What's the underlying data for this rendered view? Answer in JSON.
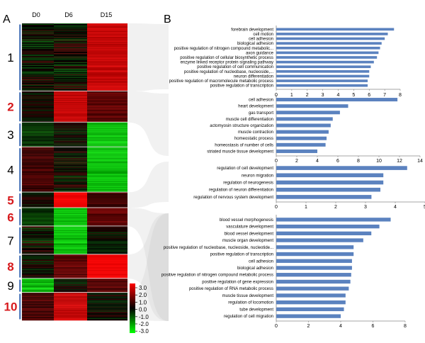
{
  "panel_a": {
    "letter": "A",
    "columns": [
      "D0",
      "D6",
      "D15"
    ],
    "clusters": [
      {
        "label": "1",
        "label_color": "#000000",
        "rows": 96,
        "pattern": [
          "mixed",
          "mixed",
          "red"
        ]
      },
      {
        "label": "2",
        "label_color": "#d7191c",
        "rows": 44,
        "pattern": [
          "dark",
          "red",
          "darkred"
        ]
      },
      {
        "label": "3",
        "label_color": "#000000",
        "rows": 35,
        "pattern": [
          "greendark",
          "dark",
          "green"
        ]
      },
      {
        "label": "4",
        "label_color": "#000000",
        "rows": 64,
        "pattern": [
          "reddark",
          "mixed",
          "green"
        ]
      },
      {
        "label": "5",
        "label_color": "#d7191c",
        "rows": 22,
        "pattern": [
          "dark",
          "brightred",
          "reddark"
        ]
      },
      {
        "label": "6",
        "label_color": "#d7191c",
        "rows": 26,
        "pattern": [
          "greendark",
          "green",
          "darkred"
        ]
      },
      {
        "label": "7",
        "label_color": "#000000",
        "rows": 40,
        "pattern": [
          "mixed",
          "green",
          "dark"
        ]
      },
      {
        "label": "8",
        "label_color": "#d7191c",
        "rows": 34,
        "pattern": [
          "dark",
          "darkred",
          "brightred"
        ]
      },
      {
        "label": "9",
        "label_color": "#000000",
        "rows": 20,
        "pattern": [
          "green",
          "dark",
          "darkred"
        ]
      },
      {
        "label": "10",
        "label_color": "#d7191c",
        "rows": 39,
        "pattern": [
          "reddark",
          "red",
          "dark"
        ]
      }
    ],
    "color_key": {
      "ticks": [
        "3.0",
        "2.0",
        "1.0",
        "0.0",
        "-1.0",
        "-2.0",
        "-3.0"
      ],
      "high_color": "#ff0000",
      "mid_color": "#000000",
      "low_color": "#00ff00"
    }
  },
  "panel_b": {
    "letter": "B",
    "bar_color": "#5b82bf"
  },
  "chart_data": [
    {
      "type": "bar",
      "orientation": "horizontal",
      "cluster": "1",
      "categories": [
        "forebrain development",
        "cell motion",
        "cell adhesion",
        "biological adhesion",
        "positive regulation of nitrogen compound metabolic...",
        "axon guidance",
        "positive regulation of cellular biosynthetic process",
        "enzyme linked receptor protein signaling pathway",
        "positive regulation of cell communication",
        "positive regulation of nucleobase, nucleoside,...",
        "neuron differentiation",
        "positive regulation of macromolecule metabolic process",
        "positive regulation of transcription"
      ],
      "values": [
        7.6,
        7.2,
        7.0,
        6.8,
        6.7,
        6.6,
        6.5,
        6.3,
        6.1,
        6.0,
        6.0,
        5.9,
        5.9
      ],
      "xlim": [
        0,
        8
      ],
      "ticks": [
        "0",
        "1",
        "2",
        "3",
        "4",
        "5",
        "6",
        "7",
        "8"
      ]
    },
    {
      "type": "bar",
      "orientation": "horizontal",
      "cluster": "2",
      "categories": [
        "cell adhesion",
        "heart development",
        "gas transport",
        "muscle cell differentiation",
        "actomyosin structure organization",
        "muscle contraction",
        "homeostatic process",
        "homeostasis of number of cells",
        "striated muscle tissue development"
      ],
      "values": [
        11.8,
        7.0,
        6.2,
        5.5,
        5.3,
        5.1,
        4.9,
        4.8,
        4.0
      ],
      "xlim": [
        0,
        14
      ],
      "ticks": [
        "0",
        "2",
        "4",
        "6",
        "8",
        "10",
        "12",
        "14"
      ]
    },
    {
      "type": "bar",
      "orientation": "horizontal",
      "cluster": "5",
      "categories": [
        "regulation of cell development",
        "neuron migration",
        "regulation of neurogenesis",
        "regulation of neuron differentiation",
        "regulation of nervous system development"
      ],
      "values": [
        4.4,
        3.6,
        3.6,
        3.5,
        3.2
      ],
      "xlim": [
        0,
        5
      ],
      "ticks": [
        "0",
        "1",
        "2",
        "3",
        "4",
        "5"
      ]
    },
    {
      "type": "bar",
      "orientation": "horizontal",
      "cluster": "6, 8 and 10",
      "categories": [
        "blood vessel morphogenesis",
        "vasculature development",
        "blood vessel development",
        "muscle organ development",
        "positive regulation of nucleobase, nucleoside, nucleotide...",
        "positive regulation of transcription",
        "cell adhesion",
        "biological adhesion",
        "positive regulation of nitrogen compound metabolic process",
        "positive regulation of gene expression",
        "positive regulation of RNA metabolic process",
        "muscle tissue development",
        "regulation of locomotion",
        "tube development",
        "regulation of cell migration"
      ],
      "values": [
        7.1,
        6.4,
        5.9,
        5.4,
        4.8,
        4.8,
        4.7,
        4.7,
        4.65,
        4.6,
        4.5,
        4.3,
        4.3,
        4.2,
        4.0
      ],
      "xlim": [
        0,
        8
      ],
      "ticks": [
        "0",
        "2",
        "4",
        "6",
        "8"
      ]
    }
  ]
}
